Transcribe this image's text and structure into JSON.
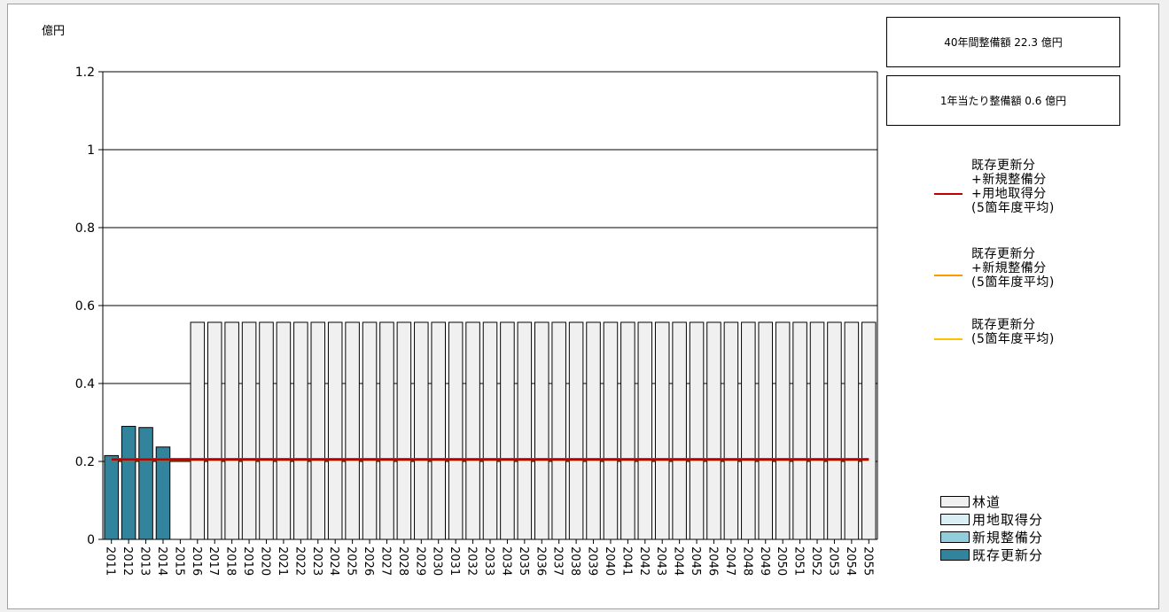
{
  "chart_data": {
    "type": "bar",
    "unit_label": "億円",
    "y_ticks": [
      "1.2",
      "1",
      "0.8",
      "0.6",
      "0.4",
      "0.2",
      "0"
    ],
    "ylim": [
      0,
      1.2
    ],
    "grid": true,
    "categories": [
      "2011",
      "2012",
      "2013",
      "2014",
      "2015",
      "2016",
      "2017",
      "2018",
      "2019",
      "2020",
      "2021",
      "2022",
      "2023",
      "2024",
      "2025",
      "2026",
      "2027",
      "2028",
      "2029",
      "2030",
      "2031",
      "2032",
      "2033",
      "2034",
      "2035",
      "2036",
      "2037",
      "2038",
      "2039",
      "2040",
      "2041",
      "2042",
      "2043",
      "2044",
      "2045",
      "2046",
      "2047",
      "2048",
      "2049",
      "2050",
      "2051",
      "2052",
      "2053",
      "2054",
      "2055"
    ],
    "series": [
      {
        "name": "林道",
        "color": "#f0f0f0",
        "values": [
          0,
          0,
          0,
          0,
          0,
          0.557,
          0.557,
          0.557,
          0.557,
          0.557,
          0.557,
          0.557,
          0.557,
          0.557,
          0.557,
          0.557,
          0.557,
          0.557,
          0.557,
          0.557,
          0.557,
          0.557,
          0.557,
          0.557,
          0.557,
          0.557,
          0.557,
          0.557,
          0.557,
          0.557,
          0.557,
          0.557,
          0.557,
          0.557,
          0.557,
          0.557,
          0.557,
          0.557,
          0.557,
          0.557,
          0.557,
          0.557,
          0.557,
          0.557,
          0.557
        ]
      },
      {
        "name": "用地取得分",
        "color": "#daeef5",
        "values": [
          0,
          0,
          0,
          0,
          0,
          0,
          0,
          0,
          0,
          0,
          0,
          0,
          0,
          0,
          0,
          0,
          0,
          0,
          0,
          0,
          0,
          0,
          0,
          0,
          0,
          0,
          0,
          0,
          0,
          0,
          0,
          0,
          0,
          0,
          0,
          0,
          0,
          0,
          0,
          0,
          0,
          0,
          0,
          0,
          0
        ]
      },
      {
        "name": "新規整備分",
        "color": "#92cddc",
        "values": [
          0,
          0,
          0,
          0,
          0,
          0,
          0,
          0,
          0,
          0,
          0,
          0,
          0,
          0,
          0,
          0,
          0,
          0,
          0,
          0,
          0,
          0,
          0,
          0,
          0,
          0,
          0,
          0,
          0,
          0,
          0,
          0,
          0,
          0,
          0,
          0,
          0,
          0,
          0,
          0,
          0,
          0,
          0,
          0,
          0
        ]
      },
      {
        "name": "既存更新分",
        "color": "#31849b",
        "values": [
          0.215,
          0.29,
          0.287,
          0.237,
          0,
          0,
          0,
          0,
          0,
          0,
          0,
          0,
          0,
          0,
          0,
          0,
          0,
          0,
          0,
          0,
          0,
          0,
          0,
          0,
          0,
          0,
          0,
          0,
          0,
          0,
          0,
          0,
          0,
          0,
          0,
          0,
          0,
          0,
          0,
          0,
          0,
          0,
          0,
          0,
          0
        ]
      }
    ],
    "lines": [
      {
        "name": "既存更新分\n+新規整備分\n+用地取得分\n(5箇年度平均)",
        "color": "#c00000",
        "value": 0.205,
        "from": "2011",
        "to": "2055"
      },
      {
        "name": "既存更新分\n+新規整備分\n(5箇年度平均)",
        "color": "#ff9900",
        "value": 0.205,
        "from": "2011",
        "to": "2055"
      },
      {
        "name": "既存更新分\n(5箇年度平均)",
        "color": "#ffc000",
        "value": 0.205,
        "from": "2011",
        "to": "2055"
      }
    ]
  },
  "summary": {
    "total_40yr": "40年間整備額  22.3 億円",
    "per_year": "1年当たり整備額  0.6 億円"
  },
  "line_legend": [
    {
      "label": "既存更新分\n+新規整備分\n+用地取得分\n(5箇年度平均)",
      "color": "#c00000"
    },
    {
      "label": "既存更新分\n+新規整備分\n(5箇年度平均)",
      "color": "#ff9900"
    },
    {
      "label": "既存更新分\n(5箇年度平均)",
      "color": "#ffc000"
    }
  ],
  "bar_legend": [
    {
      "label": "林道",
      "color": "#f0f0f0"
    },
    {
      "label": "用地取得分",
      "color": "#daeef5"
    },
    {
      "label": "新規整備分",
      "color": "#92cddc"
    },
    {
      "label": "既存更新分",
      "color": "#31849b"
    }
  ]
}
